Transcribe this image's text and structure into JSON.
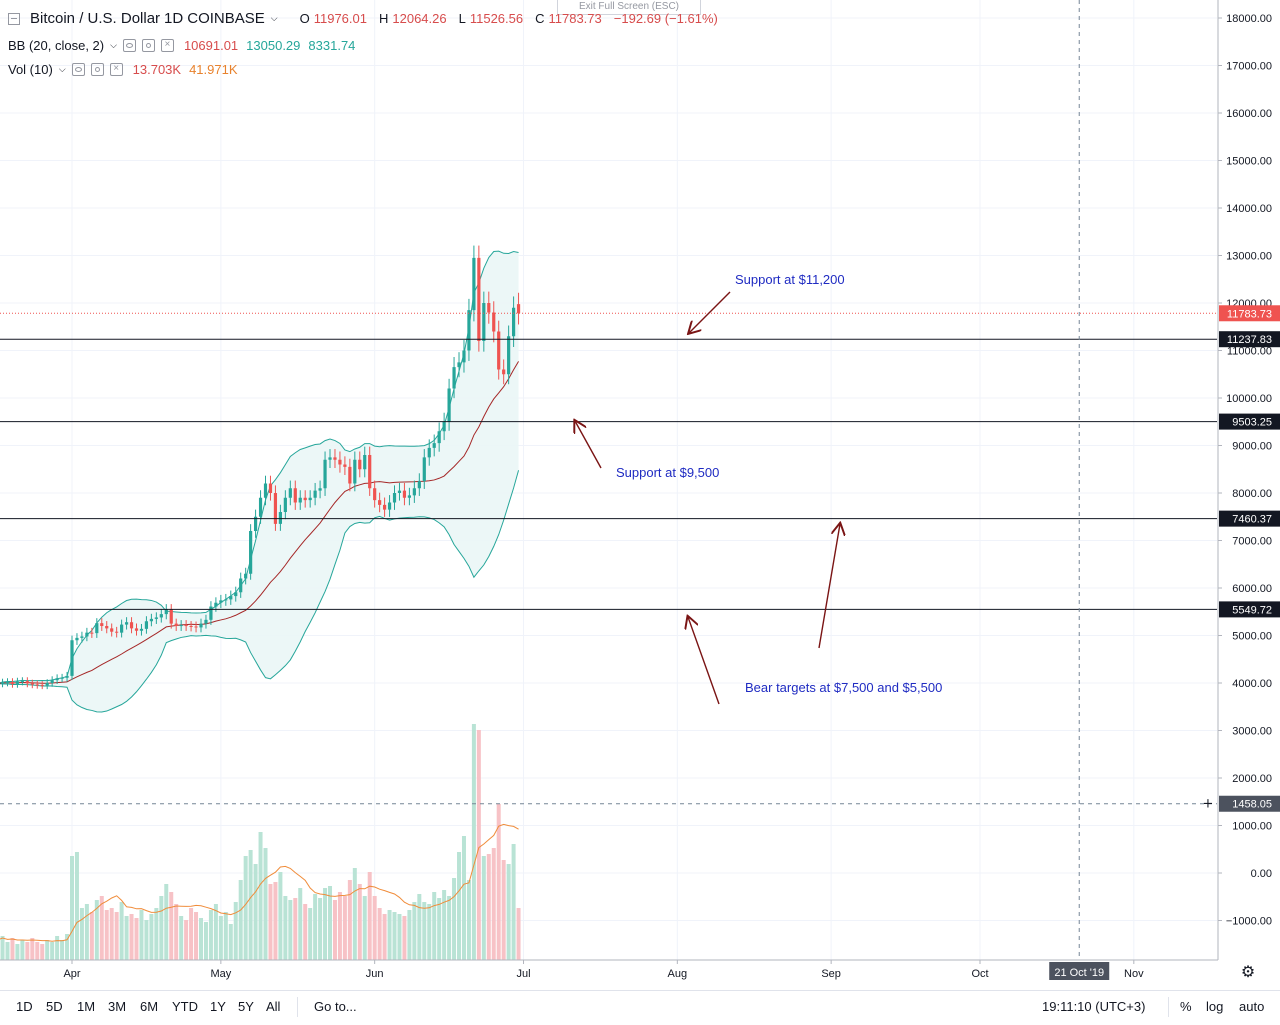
{
  "header": {
    "symbol_title": "Bitcoin / U.S. Dollar",
    "interval": "1D",
    "exchange": "COINBASE",
    "ohlc": {
      "o_label": "O",
      "o_value": "11976.01",
      "h_label": "H",
      "h_value": "12064.26",
      "l_label": "L",
      "l_value": "11526.56",
      "c_label": "C",
      "c_value": "11783.73",
      "change": "−192.69 (−1.61%)"
    },
    "exit_fullscreen": "Exit Full Screen (ESC)"
  },
  "indicators": {
    "bb": {
      "label": "BB (20, close, 2)",
      "v1": "10691.01",
      "v2": "13050.29",
      "v3": "8331.74"
    },
    "vol": {
      "label": "Vol (10)",
      "v1": "13.703K",
      "v2": "41.971K"
    }
  },
  "colors": {
    "up": "#26a69a",
    "down": "#ef5350",
    "bb_fill": "#eaf6f6",
    "bb_band": "#26a69a",
    "bb_basis": "#a52727",
    "vol_up": "#b9e3d5",
    "vol_down": "#f7c2c6",
    "vol_ma": "#f08c3a",
    "annotation": "#1f2bc2",
    "arrow": "#7a1414",
    "last_price": "#ef5350"
  },
  "annotations": [
    {
      "text": "Support at $11,200"
    },
    {
      "text": "Support at $9,500"
    },
    {
      "text": "Bear targets at $7,500 and $5,500"
    }
  ],
  "crosshair": {
    "price_label": "1458.05",
    "date_label": "21 Oct '19"
  },
  "bottom_bar": {
    "ranges": [
      "1D",
      "5D",
      "1M",
      "3M",
      "6M",
      "YTD",
      "1Y",
      "5Y",
      "All"
    ],
    "goto": "Go to...",
    "clock": "19:11:10 (UTC+3)",
    "pct": "%",
    "log": "log",
    "auto": "auto"
  },
  "chart_data": {
    "type": "candlestick",
    "title": "Bitcoin / U.S. Dollar",
    "y_axis": {
      "min": -1500,
      "max": 18500,
      "ticks": [
        18000,
        17000,
        16000,
        15000,
        14000,
        13000,
        12000,
        11000,
        10000,
        9000,
        8000,
        7000,
        6000,
        5000,
        4000,
        3000,
        2000,
        1000,
        0,
        -1000
      ],
      "tick_labels": [
        "18000.00",
        "17000.00",
        "16000.00",
        "15000.00",
        "14000.00",
        "13000.00",
        "12000.00",
        "11000.00",
        "10000.00",
        "9000.00",
        "8000.00",
        "7000.00",
        "6000.00",
        "5000.00",
        "4000.00",
        "3000.00",
        "2000.00",
        "1000.00",
        "0.00",
        "−1000.00"
      ]
    },
    "x_axis": {
      "start": "2019-03-17",
      "end": "2019-11-24",
      "ticks": [
        {
          "date": "2019-04-01",
          "label": "Apr"
        },
        {
          "date": "2019-05-01",
          "label": "May"
        },
        {
          "date": "2019-06-01",
          "label": "Jun"
        },
        {
          "date": "2019-07-01",
          "label": "Jul"
        },
        {
          "date": "2019-08-01",
          "label": "Aug"
        },
        {
          "date": "2019-09-01",
          "label": "Sep"
        },
        {
          "date": "2019-10-01",
          "label": "Oct"
        },
        {
          "date": "2019-11-01",
          "label": "Nov"
        }
      ]
    },
    "horizontal_levels": [
      {
        "value": 11237.83,
        "label": "11237.83"
      },
      {
        "value": 9503.25,
        "label": "9503.25"
      },
      {
        "value": 7460.37,
        "label": "7460.37"
      },
      {
        "value": 5549.72,
        "label": "5549.72"
      }
    ],
    "last_price": {
      "value": 11783.73,
      "label": "11783.73"
    },
    "candles_start": "2019-03-17",
    "closes": [
      3990,
      4010,
      4020,
      3980,
      4030,
      4040,
      3990,
      3970,
      3960,
      3950,
      4000,
      4060,
      4100,
      4110,
      4150,
      4900,
      4950,
      4980,
      5060,
      5050,
      5260,
      5200,
      5150,
      5080,
      5060,
      5230,
      5280,
      5150,
      5100,
      5140,
      5300,
      5350,
      5380,
      5450,
      5550,
      5250,
      5200,
      5220,
      5200,
      5190,
      5170,
      5250,
      5330,
      5610,
      5690,
      5740,
      5760,
      5830,
      5910,
      6200,
      6300,
      7200,
      7500,
      7900,
      8200,
      8000,
      7350,
      7600,
      7900,
      8100,
      7800,
      7900,
      7850,
      7900,
      8050,
      8100,
      8700,
      8750,
      8700,
      8600,
      8550,
      8200,
      8700,
      8500,
      8800,
      8100,
      7850,
      7750,
      7650,
      7800,
      8000,
      8050,
      7900,
      7950,
      8100,
      8250,
      8750,
      8950,
      9050,
      9300,
      9500,
      10200,
      10650,
      10750,
      11000,
      11850,
      12950,
      11200,
      12000,
      11800,
      11400,
      10600,
      10500,
      11300,
      11900,
      11783.73
    ],
    "opens": [
      3960,
      3990,
      4010,
      4020,
      3980,
      4030,
      4040,
      3990,
      3970,
      3960,
      3950,
      4000,
      4060,
      4100,
      4110,
      4150,
      4900,
      4950,
      4980,
      5060,
      5050,
      5260,
      5200,
      5150,
      5080,
      5060,
      5230,
      5280,
      5150,
      5100,
      5140,
      5300,
      5350,
      5380,
      5450,
      5550,
      5250,
      5200,
      5220,
      5200,
      5190,
      5170,
      5250,
      5330,
      5610,
      5690,
      5740,
      5760,
      5830,
      5910,
      6200,
      6300,
      7200,
      7500,
      7900,
      8200,
      8000,
      7350,
      7600,
      7900,
      8100,
      7800,
      7900,
      7850,
      7900,
      8050,
      8100,
      8700,
      8750,
      8700,
      8600,
      8550,
      8200,
      8700,
      8500,
      8800,
      8100,
      7850,
      7750,
      7650,
      7800,
      8000,
      8050,
      7900,
      7950,
      8100,
      8250,
      8750,
      8950,
      9050,
      9300,
      9500,
      10200,
      10650,
      10750,
      11000,
      11850,
      12950,
      11200,
      12000,
      11800,
      11400,
      10600,
      10500,
      11300,
      11976.01
    ],
    "volumes": [
      1,
      1.2,
      0.9,
      1.1,
      0.8,
      1.0,
      0.9,
      1.1,
      0.9,
      0.8,
      1.0,
      0.9,
      1.2,
      1.0,
      1.3,
      5.2,
      5.4,
      2.6,
      2.8,
      2.4,
      3.0,
      3.2,
      2.5,
      2.6,
      2.4,
      2.9,
      2.2,
      2.3,
      2.1,
      2.5,
      2.0,
      2.3,
      2.6,
      3.2,
      3.8,
      3.4,
      2.8,
      2.2,
      2.0,
      2.6,
      2.4,
      2.1,
      1.9,
      2.5,
      2.8,
      2.2,
      2.4,
      1.8,
      2.9,
      4.0,
      5.2,
      5.5,
      4.8,
      6.4,
      5.6,
      3.8,
      3.9,
      4.4,
      3.2,
      3.0,
      3.1,
      3.6,
      2.8,
      2.6,
      3.3,
      3.1,
      3.6,
      3.7,
      3.0,
      3.4,
      3.2,
      4.0,
      4.6,
      3.8,
      3.2,
      4.4,
      3.2,
      2.6,
      2.3,
      2.5,
      2.4,
      2.3,
      2.2,
      2.5,
      2.9,
      3.3,
      2.9,
      2.8,
      3.4,
      3.1,
      3.5,
      3.2,
      4.1,
      5.4,
      6.2,
      4.0,
      11.8,
      11.5,
      5.2,
      5.3,
      5.6,
      7.8,
      5.0,
      4.8,
      5.8,
      2.6
    ]
  }
}
